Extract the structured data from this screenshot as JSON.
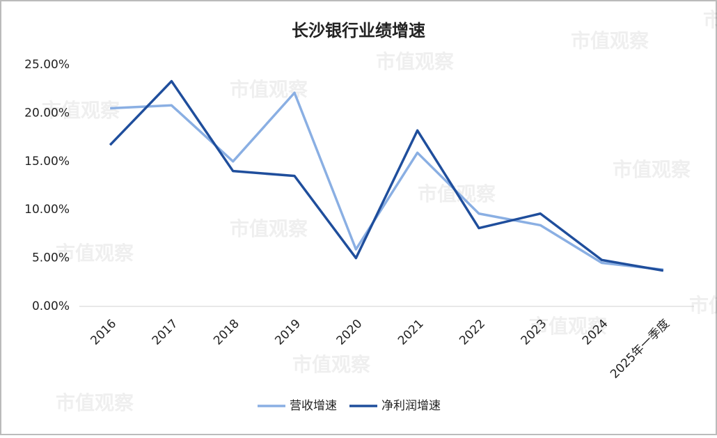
{
  "chart_data": {
    "type": "line",
    "title": "长沙银行业绩增速",
    "watermark": "市值观察",
    "categories": [
      "2016",
      "2017",
      "2018",
      "2019",
      "2020",
      "2021",
      "2022",
      "2023",
      "2024",
      "2025年一季度"
    ],
    "series": [
      {
        "name": "营收增速",
        "color": "#8aafe3",
        "values": [
          20.5,
          20.8,
          15.0,
          22.1,
          5.9,
          15.9,
          9.6,
          8.4,
          4.5,
          3.8
        ]
      },
      {
        "name": "净利润增速",
        "color": "#1f4e9c",
        "values": [
          16.7,
          23.3,
          14.0,
          13.5,
          5.0,
          18.2,
          8.1,
          9.6,
          4.8,
          3.7
        ]
      }
    ],
    "ylim": [
      0,
      25
    ],
    "yticks": [
      {
        "value": 0,
        "label": "0.00%"
      },
      {
        "value": 5,
        "label": "5.00%"
      },
      {
        "value": 10,
        "label": "10.00%"
      },
      {
        "value": 15,
        "label": "15.00%"
      },
      {
        "value": 20,
        "label": "20.00%"
      },
      {
        "value": 25,
        "label": "25.00%"
      }
    ],
    "legend": "bottom"
  }
}
